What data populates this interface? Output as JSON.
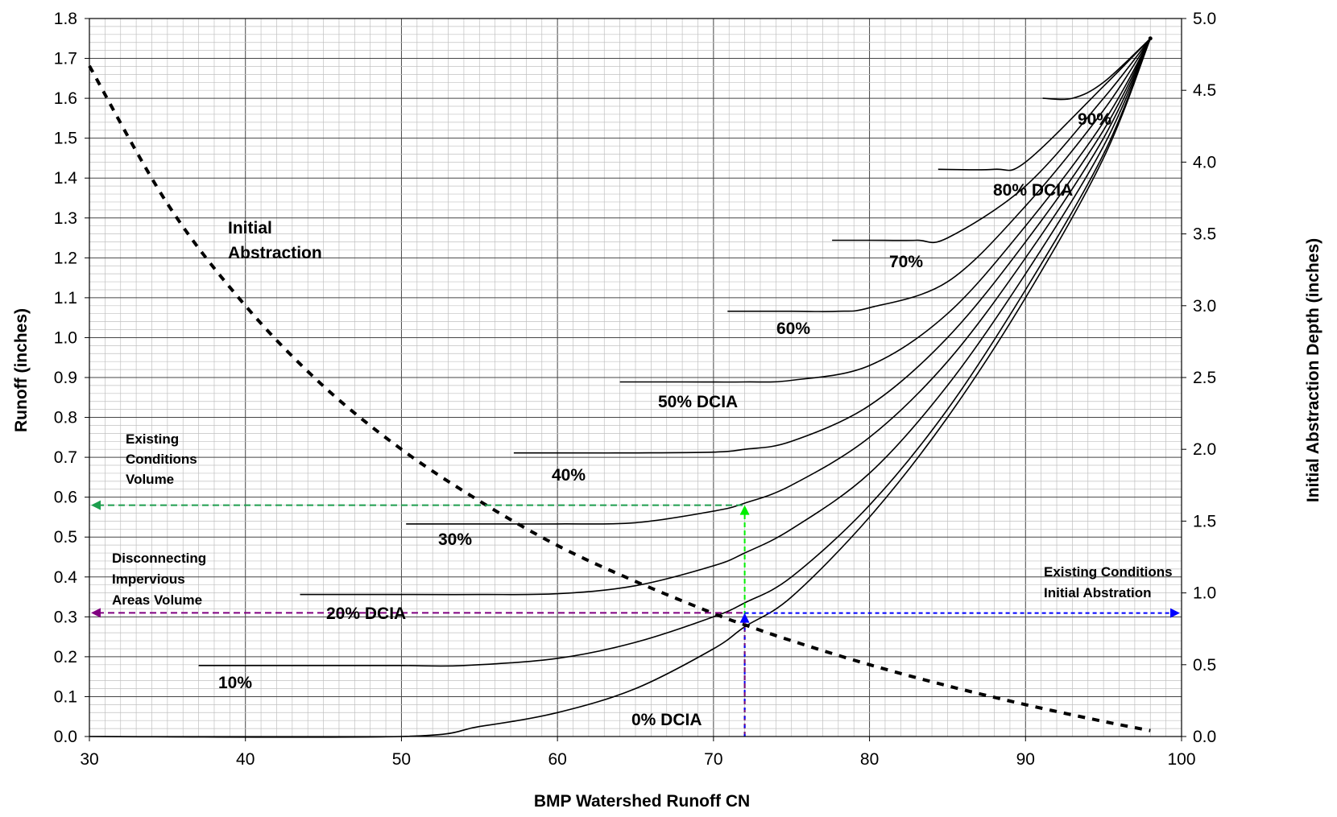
{
  "chart_data": {
    "type": "line",
    "xlabel": "BMP Watershed Runoff CN",
    "ylabel": "Runoff (inches)",
    "y2label": "Initial Abstraction Depth (inches)",
    "xlim": [
      30,
      100
    ],
    "ylim": [
      0,
      1.8
    ],
    "y2lim": [
      0,
      5.0
    ],
    "x_ticks": [
      "30",
      "40",
      "50",
      "60",
      "70",
      "80",
      "90",
      "100"
    ],
    "y_ticks": [
      "0.0",
      "0.1",
      "0.2",
      "0.3",
      "0.4",
      "0.5",
      "0.6",
      "0.7",
      "0.8",
      "0.9",
      "1.0",
      "1.1",
      "1.2",
      "1.3",
      "1.4",
      "1.5",
      "1.6",
      "1.7",
      "1.8"
    ],
    "y2_ticks": [
      "0.0",
      "0.5",
      "1.0",
      "1.5",
      "2.0",
      "2.5",
      "3.0",
      "3.5",
      "4.0",
      "4.5",
      "5.0"
    ],
    "grid": {
      "major": true,
      "minor": true
    },
    "legend": "none",
    "colors": {
      "curves": "#000000",
      "green": "#1e9e4e",
      "light_green": "#00ee00",
      "purple": "#800080",
      "blue": "#0000ff"
    },
    "series": [
      {
        "dcia": 0,
        "x": [
          30,
          50,
          55,
          60,
          65,
          70,
          72,
          75,
          80,
          85,
          90,
          95,
          98
        ],
        "y": [
          0,
          0,
          0.025,
          0.06,
          0.12,
          0.22,
          0.275,
          0.35,
          0.55,
          0.8,
          1.1,
          1.45,
          1.75
        ]
      },
      {
        "dcia": 10,
        "x": [
          37,
          45,
          50,
          54,
          60,
          65,
          70,
          72,
          75,
          80,
          85,
          90,
          95,
          98
        ],
        "y": [
          0.178,
          0.178,
          0.178,
          0.178,
          0.196,
          0.236,
          0.3,
          0.335,
          0.4,
          0.58,
          0.82,
          1.12,
          1.46,
          1.75
        ]
      },
      {
        "dcia": 20,
        "x": [
          43.5,
          50,
          55,
          60,
          65,
          70,
          72,
          75,
          80,
          85,
          90,
          95,
          98
        ],
        "y": [
          0.356,
          0.356,
          0.356,
          0.358,
          0.378,
          0.428,
          0.46,
          0.52,
          0.66,
          0.88,
          1.16,
          1.48,
          1.75
        ]
      },
      {
        "dcia": 30,
        "x": [
          50.3,
          55,
          60,
          65,
          70,
          72,
          75,
          80,
          85,
          90,
          95,
          98
        ],
        "y": [
          0.533,
          0.533,
          0.533,
          0.536,
          0.565,
          0.585,
          0.63,
          0.75,
          0.94,
          1.2,
          1.5,
          1.75
        ]
      },
      {
        "dcia": 40,
        "x": [
          57.2,
          60,
          65,
          70,
          72,
          75,
          80,
          85,
          90,
          95,
          98
        ],
        "y": [
          0.711,
          0.711,
          0.711,
          0.713,
          0.72,
          0.74,
          0.83,
          1.0,
          1.24,
          1.52,
          1.75
        ]
      },
      {
        "dcia": 50,
        "x": [
          64,
          68,
          72,
          75,
          80,
          85,
          90,
          95,
          98
        ],
        "y": [
          0.889,
          0.889,
          0.889,
          0.893,
          0.93,
          1.06,
          1.28,
          1.54,
          1.75
        ]
      },
      {
        "dcia": 60,
        "x": [
          70.9,
          75,
          78,
          80,
          85,
          90,
          95,
          98
        ],
        "y": [
          1.066,
          1.066,
          1.066,
          1.075,
          1.14,
          1.33,
          1.57,
          1.75
        ]
      },
      {
        "dcia": 70,
        "x": [
          77.6,
          80,
          83,
          85,
          90,
          95,
          98
        ],
        "y": [
          1.244,
          1.244,
          1.244,
          1.25,
          1.38,
          1.6,
          1.75
        ]
      },
      {
        "dcia": 80,
        "x": [
          84.4,
          88,
          90,
          95,
          98
        ],
        "y": [
          1.422,
          1.422,
          1.44,
          1.63,
          1.75
        ]
      },
      {
        "dcia": 90,
        "x": [
          91.1,
          93,
          95,
          98
        ],
        "y": [
          1.6,
          1.6,
          1.64,
          1.75
        ]
      }
    ],
    "initial_abstraction": {
      "axis": "y2",
      "x": [
        30,
        35,
        40,
        45,
        50,
        55,
        60,
        65,
        70,
        72,
        75,
        80,
        85,
        90,
        95,
        98
      ],
      "y": [
        4.67,
        3.71,
        3.0,
        2.44,
        2.0,
        1.64,
        1.33,
        1.08,
        0.857,
        0.778,
        0.667,
        0.5,
        0.353,
        0.222,
        0.105,
        0.041
      ]
    },
    "curve_labels": [
      "0% DCIA",
      "10%",
      "20% DCIA",
      "30%",
      "40%",
      "50% DCIA",
      "60%",
      "70%",
      "80% DCIA",
      "90%"
    ],
    "annotations": {
      "initial_abstraction": [
        "Initial",
        "Abstraction"
      ],
      "existing_volume": [
        "Existing",
        "Conditions",
        "Volume"
      ],
      "disconnecting": [
        "Disconnecting",
        "Impervious",
        "Areas Volume"
      ],
      "existing_ia": [
        "Existing Conditions",
        "Initial Abstration"
      ]
    },
    "reference_lines": {
      "cn": 72,
      "existing_volume_runoff": 0.58,
      "disconnect_runoff": 0.31,
      "existing_ia_depth": 0.86
    }
  }
}
